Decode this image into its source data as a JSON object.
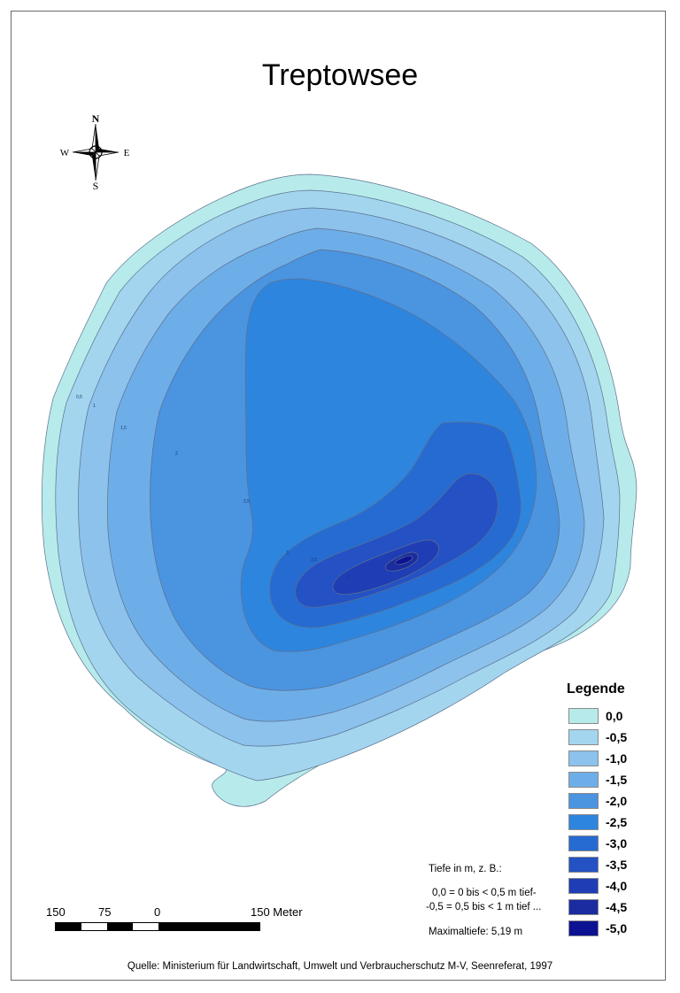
{
  "title": "Treptowsee",
  "compass": {
    "n": "N",
    "s": "S",
    "e": "E",
    "w": "W",
    "icon": "compass-rose-icon"
  },
  "colors": {
    "border": "#6b6b6b",
    "contour_stroke": "#5c6f8e",
    "levels": [
      "#b7ebeb",
      "#a3d6ee",
      "#8cc2ec",
      "#6eaee8",
      "#4a94e0",
      "#2e85de",
      "#256bd2",
      "#2452c4",
      "#1f3eb5",
      "#1b2ba0",
      "#0d1293"
    ]
  },
  "contour_labels": [
    "0,5",
    "1",
    "1,5",
    "2",
    "2,5",
    "3",
    "3,5",
    "4",
    "4,5",
    "5"
  ],
  "legend": {
    "title": "Legende",
    "items": [
      "0,0",
      "-0,5",
      "-1,0",
      "-1,5",
      "-2,0",
      "-2,5",
      "-3,0",
      "-3,5",
      "-4,0",
      "-4,5",
      "-5,0"
    ]
  },
  "notes": {
    "tiefe": "Tiefe in m, z. B.:",
    "example_1": "0,0 = 0 bis < 0,5 m tief-",
    "example_2": "-0,5 = 0,5 bis < 1 m tief ...",
    "maxtiefe": "Maximaltiefe: 5,19 m"
  },
  "scale": {
    "labels": [
      "150",
      "75",
      "0",
      "150 Meter"
    ]
  },
  "source": "Quelle: Ministerium für Landwirtschaft, Umwelt und Verbraucherschutz M-V, Seenreferat, 1997"
}
